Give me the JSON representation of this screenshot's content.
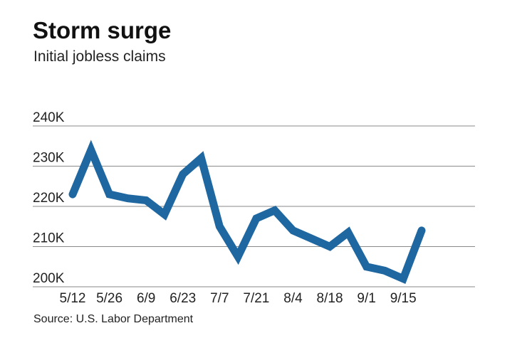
{
  "chart_data": {
    "type": "line",
    "title": "Storm surge",
    "subtitle": "Initial jobless claims",
    "source": "Source: U.S. Labor Department",
    "xlabel": "",
    "ylabel": "",
    "x": [
      "5/12",
      "5/19",
      "5/26",
      "6/2",
      "6/9",
      "6/16",
      "6/23",
      "6/30",
      "7/7",
      "7/14",
      "7/21",
      "7/28",
      "8/4",
      "8/11",
      "8/18",
      "8/25",
      "9/1",
      "9/8",
      "9/15",
      "9/22"
    ],
    "x_tick_labels": [
      "5/12",
      "5/26",
      "6/9",
      "6/23",
      "7/7",
      "7/21",
      "8/4",
      "8/18",
      "9/1",
      "9/15"
    ],
    "values": [
      223,
      234,
      223,
      222,
      221.5,
      218,
      228,
      232,
      215,
      207.5,
      217,
      219,
      214,
      212,
      210,
      213.5,
      205,
      204,
      202,
      214
    ],
    "ylim": [
      200,
      240
    ],
    "y_ticks": [
      200,
      210,
      220,
      230,
      240
    ],
    "y_tick_labels": [
      "200K",
      "210K",
      "220K",
      "230K",
      "240K"
    ],
    "grid": "horizontal",
    "line_color": "#1f67a0",
    "grid_color": "#8a8a8a"
  }
}
